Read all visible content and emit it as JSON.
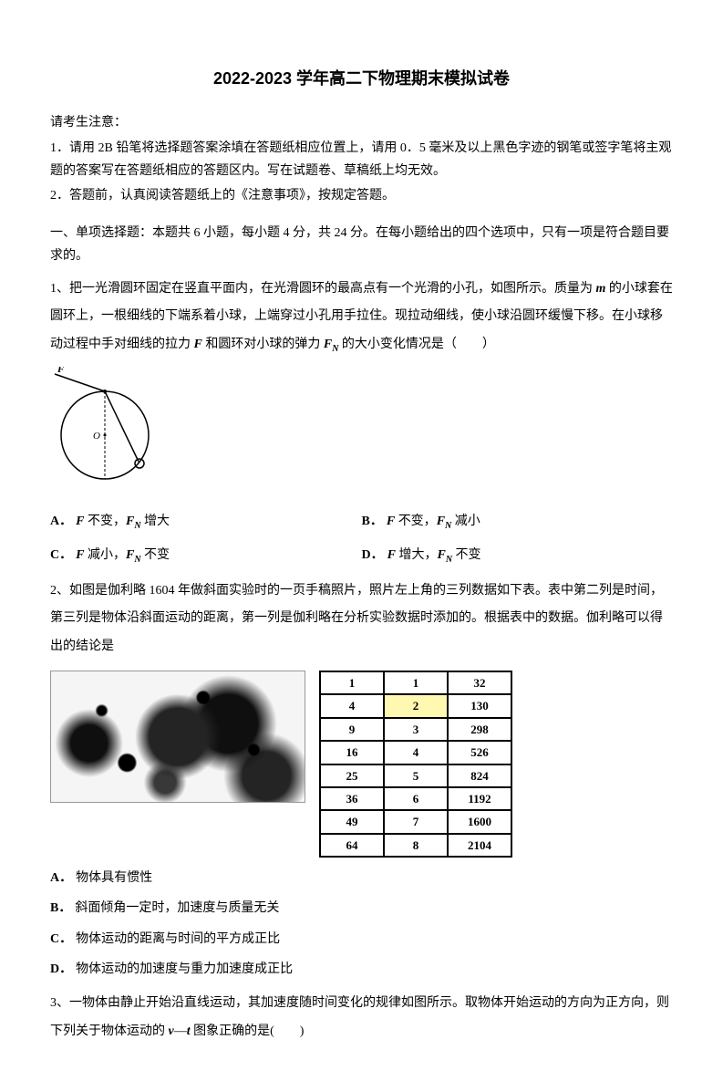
{
  "title": "2022-2023 学年高二下物理期末模拟试卷",
  "instructions": {
    "header": "请考生注意：",
    "line1": "1．请用 2B 铅笔将选择题答案涂填在答题纸相应位置上，请用 0．5 毫米及以上黑色字迹的钢笔或签字笔将主观题的答案写在答题纸相应的答题区内。写在试题卷、草稿纸上均无效。",
    "line2": "2．答题前，认真阅读答题纸上的《注意事项》，按规定答题。"
  },
  "section1_header": "一、单项选择题：本题共 6 小题，每小题 4 分，共 24 分。在每小题给出的四个选项中，只有一项是符合题目要求的。",
  "q1": {
    "text_part1": "1、把一光滑圆环固定在竖直平面内，在光滑圆环的最高点有一个光滑的小孔，如图所示。质量为 ",
    "text_part2": " 的小球套在圆环上，一根细线的下端系着小球，上端穿过小孔用手拉住。现拉动细线，使小球沿圆环缓慢下移。在小球移动过程中手对细线的拉力 ",
    "text_part3": " 和圆环对小球的弹力 ",
    "text_part4": " 的大小变化情况是（　　）",
    "var_m": "m",
    "var_F": "F",
    "var_FN": "F",
    "sub_N": "N",
    "diagram": {
      "label_F": "F",
      "label_O": "O"
    },
    "options": {
      "A": "不变，",
      "A_suffix": " 增大",
      "B": "不变，",
      "B_suffix": " 减小",
      "C": "减小，",
      "C_suffix": " 不变",
      "D": "增大，",
      "D_suffix": " 不变"
    }
  },
  "q2": {
    "text": "2、如图是伽利略 1604 年做斜面实验时的一页手稿照片，照片左上角的三列数据如下表。表中第二列是时间，第三列是物体沿斜面运动的距离，第一列是伽利略在分析实验数据时添加的。根据表中的数据。伽利略可以得出的结论是",
    "table": {
      "rows": [
        [
          "1",
          "1",
          "32"
        ],
        [
          "4",
          "2",
          "130"
        ],
        [
          "9",
          "3",
          "298"
        ],
        [
          "16",
          "4",
          "526"
        ],
        [
          "25",
          "5",
          "824"
        ],
        [
          "36",
          "6",
          "1192"
        ],
        [
          "49",
          "7",
          "1600"
        ],
        [
          "64",
          "8",
          "2104"
        ]
      ],
      "highlight_row": 1,
      "highlight_col": 1
    },
    "options": {
      "A": "物体具有惯性",
      "B": "斜面倾角一定时，加速度与质量无关",
      "C": "物体运动的距离与时间的平方成正比",
      "D": "物体运动的加速度与重力加速度成正比"
    }
  },
  "q3": {
    "text_part1": "3、一物体由静止开始沿直线运动，其加速度随时间变化的规律如图所示。取物体开始运动的方向为正方向，则下列关于物体运动的 ",
    "var_v": "v",
    "dash": "—",
    "var_t": "t",
    "text_part2": " 图象正确的是(　　)"
  },
  "labels": {
    "A": "A．",
    "B": "B．",
    "C": "C．",
    "D": "D．"
  }
}
